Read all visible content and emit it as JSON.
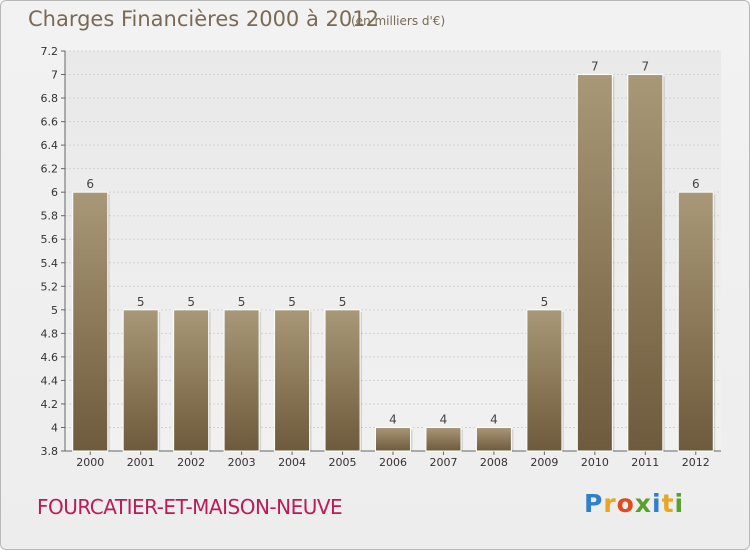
{
  "header": {
    "title": "Charges Financières 2000 à 2012",
    "subtitle": "(en milliers d'€)"
  },
  "footer": {
    "commune": "FOURCATIER-ET-MAISON-NEUVE",
    "logo": [
      "P",
      "r",
      "o",
      "x",
      "i",
      "t",
      "i"
    ],
    "logo_colors": [
      "#2f7fd1",
      "#e8a623",
      "#e04a1c",
      "#5aa02c",
      "#2f7fd1",
      "#e8a623",
      "#5aa02c"
    ]
  },
  "chart_data": {
    "type": "bar",
    "title": "Charges Financières 2000 à 2012",
    "subtitle": "(en milliers d'€)",
    "categories": [
      "2000",
      "2001",
      "2002",
      "2003",
      "2004",
      "2005",
      "2006",
      "2007",
      "2008",
      "2009",
      "2010",
      "2011",
      "2012"
    ],
    "values": [
      6,
      5,
      5,
      5,
      5,
      5,
      4,
      4,
      4,
      5,
      7,
      7,
      6
    ],
    "value_labels": [
      "6",
      "5",
      "5",
      "5",
      "5",
      "5",
      "4",
      "4",
      "4",
      "5",
      "7",
      "7",
      "6"
    ],
    "ylim": [
      3.8,
      7.2
    ],
    "yticks": [
      "3.8",
      "4",
      "4.2",
      "4.4",
      "4.6",
      "4.8",
      "5",
      "5.2",
      "5.4",
      "5.6",
      "5.8",
      "6",
      "6.2",
      "6.4",
      "6.6",
      "6.8",
      "7",
      "7.2"
    ],
    "grid": true,
    "bar_color_top": "#a89878",
    "bar_color_bottom": "#6e5a3c"
  }
}
